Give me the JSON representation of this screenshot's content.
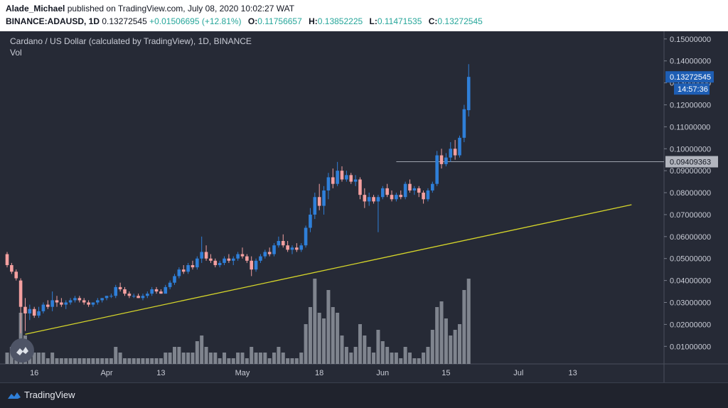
{
  "header": {
    "author": "Alade_Michael",
    "published": "published on TradingView.com, July 08, 2020 10:02:27 WAT",
    "symbol": "BINANCE:ADAUSD, 1D",
    "last": "0.13272545",
    "change": "+0.01506695 (+12.81%)",
    "o_label": "O:",
    "o_value": "0.11756657",
    "h_label": "H:",
    "h_value": "0.13852225",
    "l_label": "L:",
    "l_value": "0.11471535",
    "c_label": "C:",
    "c_value": "0.13272545"
  },
  "legend": {
    "title": "Cardano / US Dollar (calculated by TradingView), 1D, BINANCE",
    "vol": "Vol"
  },
  "footer": {
    "brand": "TradingView"
  },
  "colors": {
    "background": "#262a36",
    "up": "#2f7fd8",
    "down": "#f4a0a0",
    "trendline": "#d6d62a",
    "volume": "#8f949e",
    "price_label": "#1e5eb4",
    "level_label": "#b2b5be"
  },
  "chart_data": {
    "type": "candlestick",
    "x_start": "2020-03-10",
    "xtick_labels": [
      {
        "label": "16",
        "date": "2020-03-16"
      },
      {
        "label": "Apr",
        "date": "2020-04-01"
      },
      {
        "label": "13",
        "date": "2020-04-13"
      },
      {
        "label": "May",
        "date": "2020-05-01"
      },
      {
        "label": "18",
        "date": "2020-05-18"
      },
      {
        "label": "Jun",
        "date": "2020-06-01"
      },
      {
        "label": "15",
        "date": "2020-06-15"
      },
      {
        "label": "Jul",
        "date": "2020-07-01"
      },
      {
        "label": "13",
        "date": "2020-07-13"
      }
    ],
    "ylim": [
      0.002,
      0.1535
    ],
    "y_ticks": [
      "0.01000000",
      "0.02000000",
      "0.03000000",
      "0.04000000",
      "0.05000000",
      "0.06000000",
      "0.07000000",
      "0.08000000",
      "0.09000000",
      "0.10000000",
      "0.11000000",
      "0.12000000",
      "0.13000000",
      "0.14000000",
      "0.15000000"
    ],
    "candles": [
      [
        0.052,
        0.053,
        0.046,
        0.047,
        2
      ],
      [
        0.047,
        0.048,
        0.043,
        0.044,
        3
      ],
      [
        0.044,
        0.045,
        0.04,
        0.041,
        3
      ],
      [
        0.04,
        0.041,
        0.016,
        0.028,
        9
      ],
      [
        0.028,
        0.032,
        0.017,
        0.025,
        5
      ],
      [
        0.025,
        0.029,
        0.022,
        0.027,
        3
      ],
      [
        0.027,
        0.028,
        0.023,
        0.024,
        2
      ],
      [
        0.024,
        0.028,
        0.023,
        0.026,
        2
      ],
      [
        0.026,
        0.03,
        0.025,
        0.029,
        2
      ],
      [
        0.029,
        0.031,
        0.027,
        0.028,
        1
      ],
      [
        0.028,
        0.035,
        0.026,
        0.031,
        2
      ],
      [
        0.031,
        0.033,
        0.028,
        0.03,
        1
      ],
      [
        0.03,
        0.032,
        0.028,
        0.029,
        1
      ],
      [
        0.029,
        0.031,
        0.027,
        0.03,
        1
      ],
      [
        0.03,
        0.032,
        0.029,
        0.031,
        1
      ],
      [
        0.031,
        0.033,
        0.03,
        0.032,
        1
      ],
      [
        0.032,
        0.033,
        0.03,
        0.031,
        1
      ],
      [
        0.031,
        0.032,
        0.029,
        0.03,
        1
      ],
      [
        0.03,
        0.031,
        0.028,
        0.029,
        1
      ],
      [
        0.029,
        0.03,
        0.028,
        0.03,
        1
      ],
      [
        0.03,
        0.032,
        0.029,
        0.031,
        1
      ],
      [
        0.031,
        0.032,
        0.03,
        0.032,
        1
      ],
      [
        0.032,
        0.033,
        0.031,
        0.033,
        1
      ],
      [
        0.033,
        0.034,
        0.032,
        0.033,
        1
      ],
      [
        0.033,
        0.038,
        0.032,
        0.037,
        3
      ],
      [
        0.037,
        0.039,
        0.035,
        0.036,
        2
      ],
      [
        0.036,
        0.037,
        0.033,
        0.034,
        1
      ],
      [
        0.034,
        0.035,
        0.032,
        0.033,
        1
      ],
      [
        0.033,
        0.034,
        0.032,
        0.033,
        1
      ],
      [
        0.033,
        0.034,
        0.032,
        0.032,
        1
      ],
      [
        0.032,
        0.034,
        0.031,
        0.033,
        1
      ],
      [
        0.033,
        0.035,
        0.032,
        0.034,
        1
      ],
      [
        0.034,
        0.037,
        0.033,
        0.036,
        1
      ],
      [
        0.036,
        0.037,
        0.034,
        0.035,
        1
      ],
      [
        0.035,
        0.036,
        0.034,
        0.034,
        1
      ],
      [
        0.034,
        0.038,
        0.034,
        0.037,
        2
      ],
      [
        0.037,
        0.04,
        0.036,
        0.039,
        2
      ],
      [
        0.039,
        0.043,
        0.038,
        0.042,
        3
      ],
      [
        0.042,
        0.046,
        0.041,
        0.045,
        3
      ],
      [
        0.045,
        0.047,
        0.043,
        0.044,
        2
      ],
      [
        0.044,
        0.048,
        0.043,
        0.047,
        2
      ],
      [
        0.047,
        0.049,
        0.045,
        0.046,
        2
      ],
      [
        0.046,
        0.051,
        0.045,
        0.05,
        4
      ],
      [
        0.05,
        0.06,
        0.048,
        0.053,
        5
      ],
      [
        0.053,
        0.056,
        0.049,
        0.05,
        3
      ],
      [
        0.05,
        0.052,
        0.048,
        0.049,
        2
      ],
      [
        0.049,
        0.05,
        0.046,
        0.047,
        2
      ],
      [
        0.047,
        0.049,
        0.046,
        0.048,
        1
      ],
      [
        0.048,
        0.051,
        0.047,
        0.05,
        2
      ],
      [
        0.05,
        0.052,
        0.048,
        0.049,
        1
      ],
      [
        0.049,
        0.051,
        0.047,
        0.05,
        1
      ],
      [
        0.05,
        0.053,
        0.049,
        0.052,
        2
      ],
      [
        0.052,
        0.055,
        0.05,
        0.051,
        2
      ],
      [
        0.051,
        0.052,
        0.048,
        0.049,
        1
      ],
      [
        0.049,
        0.051,
        0.042,
        0.045,
        3
      ],
      [
        0.045,
        0.05,
        0.044,
        0.049,
        2
      ],
      [
        0.049,
        0.052,
        0.048,
        0.051,
        2
      ],
      [
        0.051,
        0.054,
        0.05,
        0.053,
        2
      ],
      [
        0.053,
        0.055,
        0.051,
        0.052,
        1
      ],
      [
        0.052,
        0.057,
        0.051,
        0.056,
        2
      ],
      [
        0.056,
        0.06,
        0.055,
        0.058,
        3
      ],
      [
        0.058,
        0.061,
        0.055,
        0.056,
        2
      ],
      [
        0.056,
        0.058,
        0.053,
        0.054,
        1
      ],
      [
        0.054,
        0.056,
        0.052,
        0.055,
        1
      ],
      [
        0.055,
        0.057,
        0.053,
        0.054,
        1
      ],
      [
        0.054,
        0.057,
        0.053,
        0.056,
        2
      ],
      [
        0.056,
        0.065,
        0.055,
        0.064,
        7
      ],
      [
        0.064,
        0.073,
        0.062,
        0.07,
        10
      ],
      [
        0.07,
        0.08,
        0.068,
        0.078,
        15
      ],
      [
        0.078,
        0.084,
        0.072,
        0.074,
        9
      ],
      [
        0.074,
        0.083,
        0.07,
        0.081,
        8
      ],
      [
        0.081,
        0.089,
        0.077,
        0.087,
        13
      ],
      [
        0.087,
        0.091,
        0.082,
        0.084,
        10
      ],
      [
        0.084,
        0.094,
        0.083,
        0.09,
        9
      ],
      [
        0.09,
        0.092,
        0.085,
        0.086,
        5
      ],
      [
        0.086,
        0.09,
        0.085,
        0.088,
        3
      ],
      [
        0.088,
        0.089,
        0.084,
        0.085,
        2
      ],
      [
        0.085,
        0.088,
        0.083,
        0.086,
        3
      ],
      [
        0.086,
        0.087,
        0.077,
        0.079,
        7
      ],
      [
        0.079,
        0.082,
        0.073,
        0.076,
        5
      ],
      [
        0.076,
        0.08,
        0.074,
        0.078,
        3
      ],
      [
        0.078,
        0.079,
        0.075,
        0.076,
        2
      ],
      [
        0.076,
        0.079,
        0.062,
        0.078,
        6
      ],
      [
        0.078,
        0.083,
        0.077,
        0.082,
        4
      ],
      [
        0.082,
        0.084,
        0.078,
        0.079,
        3
      ],
      [
        0.079,
        0.081,
        0.076,
        0.077,
        2
      ],
      [
        0.077,
        0.08,
        0.076,
        0.079,
        2
      ],
      [
        0.079,
        0.081,
        0.077,
        0.078,
        1
      ],
      [
        0.078,
        0.085,
        0.077,
        0.084,
        3
      ],
      [
        0.084,
        0.086,
        0.08,
        0.081,
        2
      ],
      [
        0.081,
        0.083,
        0.079,
        0.082,
        1
      ],
      [
        0.082,
        0.083,
        0.078,
        0.08,
        1
      ],
      [
        0.08,
        0.081,
        0.075,
        0.077,
        2
      ],
      [
        0.077,
        0.082,
        0.076,
        0.081,
        3
      ],
      [
        0.081,
        0.085,
        0.08,
        0.084,
        6
      ],
      [
        0.084,
        0.099,
        0.083,
        0.097,
        10
      ],
      [
        0.097,
        0.1,
        0.091,
        0.093,
        11
      ],
      [
        0.093,
        0.098,
        0.092,
        0.096,
        8
      ],
      [
        0.096,
        0.103,
        0.094,
        0.1,
        5
      ],
      [
        0.1,
        0.104,
        0.095,
        0.097,
        6
      ],
      [
        0.097,
        0.106,
        0.096,
        0.105,
        7
      ],
      [
        0.105,
        0.12,
        0.103,
        0.118,
        13
      ],
      [
        0.117566,
        0.138522,
        0.114715,
        0.132725,
        15
      ]
    ],
    "volume_scale": [
      0,
      15
    ],
    "trendline": [
      {
        "date": "2020-03-14",
        "price": 0.0155
      },
      {
        "date": "2020-07-26",
        "price": 0.0745
      }
    ],
    "level_line": {
      "start": "2020-06-04",
      "price": 0.09409363
    },
    "price_label": "0.13272545",
    "countdown_label": "14:57:36",
    "level_label": "0.09409363"
  }
}
